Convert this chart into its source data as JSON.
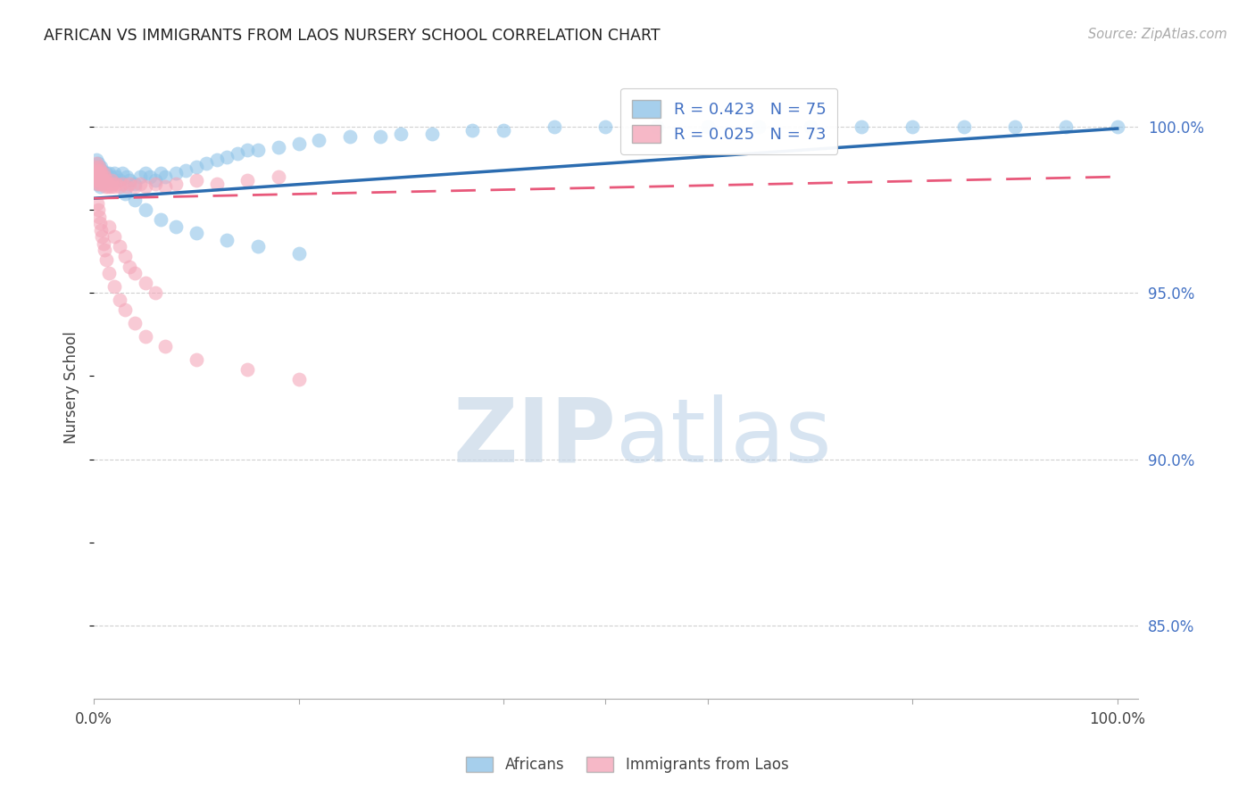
{
  "title": "AFRICAN VS IMMIGRANTS FROM LAOS NURSERY SCHOOL CORRELATION CHART",
  "source": "Source: ZipAtlas.com",
  "ylabel": "Nursery School",
  "xlim": [
    0.0,
    1.02
  ],
  "ylim": [
    0.828,
    1.015
  ],
  "ytick_values": [
    0.85,
    0.9,
    0.95,
    1.0
  ],
  "ytick_labels": [
    "85.0%",
    "90.0%",
    "95.0%",
    "100.0%"
  ],
  "legend_line1": "R = 0.423   N = 75",
  "legend_line2": "R = 0.025   N = 73",
  "african_color": "#90c4e8",
  "laos_color": "#f4a7ba",
  "trendline_african_color": "#2b6cb0",
  "trendline_laos_color": "#e8587a",
  "watermark_zip": "ZIP",
  "watermark_atlas": "atlas",
  "grid_color": "#d0d0d0",
  "african_x": [
    0.001,
    0.002,
    0.002,
    0.003,
    0.003,
    0.004,
    0.004,
    0.005,
    0.005,
    0.006,
    0.006,
    0.007,
    0.007,
    0.008,
    0.008,
    0.009,
    0.01,
    0.011,
    0.012,
    0.013,
    0.015,
    0.016,
    0.018,
    0.02,
    0.022,
    0.025,
    0.028,
    0.032,
    0.035,
    0.04,
    0.045,
    0.05,
    0.055,
    0.06,
    0.065,
    0.07,
    0.08,
    0.09,
    0.1,
    0.11,
    0.12,
    0.13,
    0.14,
    0.15,
    0.16,
    0.18,
    0.2,
    0.22,
    0.25,
    0.28,
    0.3,
    0.33,
    0.37,
    0.4,
    0.45,
    0.5,
    0.55,
    0.6,
    0.65,
    0.7,
    0.75,
    0.8,
    0.85,
    0.9,
    0.95,
    1.0,
    0.03,
    0.04,
    0.05,
    0.065,
    0.08,
    0.1,
    0.13,
    0.16,
    0.2
  ],
  "african_y": [
    0.988,
    0.985,
    0.99,
    0.983,
    0.987,
    0.986,
    0.989,
    0.984,
    0.988,
    0.982,
    0.986,
    0.985,
    0.988,
    0.984,
    0.987,
    0.986,
    0.984,
    0.985,
    0.986,
    0.984,
    0.986,
    0.985,
    0.984,
    0.986,
    0.985,
    0.984,
    0.986,
    0.985,
    0.984,
    0.983,
    0.985,
    0.986,
    0.985,
    0.984,
    0.986,
    0.985,
    0.986,
    0.987,
    0.988,
    0.989,
    0.99,
    0.991,
    0.992,
    0.993,
    0.993,
    0.994,
    0.995,
    0.996,
    0.997,
    0.997,
    0.998,
    0.998,
    0.999,
    0.999,
    1.0,
    1.0,
    1.0,
    1.0,
    1.0,
    1.0,
    1.0,
    1.0,
    1.0,
    1.0,
    1.0,
    1.0,
    0.98,
    0.978,
    0.975,
    0.972,
    0.97,
    0.968,
    0.966,
    0.964,
    0.962
  ],
  "laos_x": [
    0.001,
    0.001,
    0.002,
    0.002,
    0.003,
    0.003,
    0.003,
    0.004,
    0.004,
    0.005,
    0.005,
    0.005,
    0.006,
    0.006,
    0.007,
    0.007,
    0.008,
    0.008,
    0.009,
    0.009,
    0.01,
    0.01,
    0.011,
    0.012,
    0.013,
    0.014,
    0.015,
    0.016,
    0.017,
    0.018,
    0.02,
    0.022,
    0.025,
    0.028,
    0.032,
    0.035,
    0.04,
    0.045,
    0.05,
    0.06,
    0.07,
    0.08,
    0.1,
    0.12,
    0.15,
    0.18,
    0.003,
    0.004,
    0.005,
    0.006,
    0.007,
    0.008,
    0.009,
    0.01,
    0.012,
    0.015,
    0.02,
    0.025,
    0.03,
    0.04,
    0.05,
    0.07,
    0.1,
    0.15,
    0.2,
    0.015,
    0.02,
    0.025,
    0.03,
    0.035,
    0.04,
    0.05,
    0.06
  ],
  "laos_y": [
    0.984,
    0.988,
    0.986,
    0.989,
    0.985,
    0.987,
    0.983,
    0.986,
    0.984,
    0.985,
    0.983,
    0.988,
    0.984,
    0.987,
    0.986,
    0.983,
    0.985,
    0.983,
    0.986,
    0.984,
    0.985,
    0.983,
    0.982,
    0.984,
    0.983,
    0.982,
    0.983,
    0.982,
    0.984,
    0.983,
    0.982,
    0.983,
    0.982,
    0.983,
    0.982,
    0.983,
    0.982,
    0.983,
    0.982,
    0.983,
    0.982,
    0.983,
    0.984,
    0.983,
    0.984,
    0.985,
    0.977,
    0.975,
    0.973,
    0.971,
    0.969,
    0.967,
    0.965,
    0.963,
    0.96,
    0.956,
    0.952,
    0.948,
    0.945,
    0.941,
    0.937,
    0.934,
    0.93,
    0.927,
    0.924,
    0.97,
    0.967,
    0.964,
    0.961,
    0.958,
    0.956,
    0.953,
    0.95
  ],
  "trendline_african_x0": 0.0,
  "trendline_african_x1": 1.0,
  "trendline_african_y0": 0.9785,
  "trendline_african_y1": 0.9995,
  "trendline_laos_x0": 0.0,
  "trendline_laos_x1": 1.0,
  "trendline_laos_y0": 0.9785,
  "trendline_laos_y1": 0.985
}
